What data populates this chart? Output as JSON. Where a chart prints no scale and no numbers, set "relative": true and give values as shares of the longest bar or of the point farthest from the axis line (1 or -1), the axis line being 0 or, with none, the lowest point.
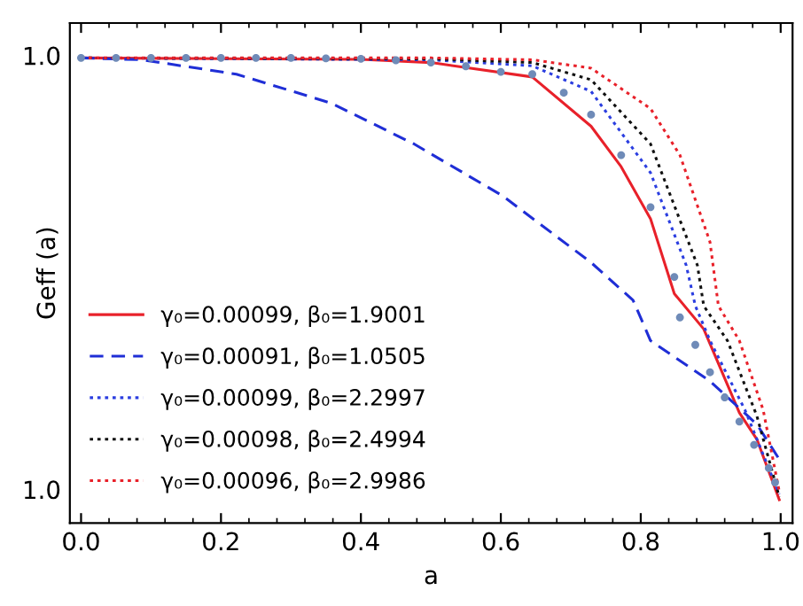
{
  "chart_data": {
    "type": "line",
    "relative": true,
    "xlabel": "a",
    "ylabel": "Geff (a)",
    "xlim": [
      -0.016,
      1.017
    ],
    "xticks": [
      {
        "value": 0,
        "label": "0.0"
      },
      {
        "value": 0.2,
        "label": "0.2"
      },
      {
        "value": 0.4,
        "label": "0.4"
      },
      {
        "value": 0.6,
        "label": "0.6"
      },
      {
        "value": 0.8,
        "label": "0.8"
      },
      {
        "value": 1.0,
        "label": "1.0"
      }
    ],
    "annotations": [
      "1.0",
      "1.0"
    ],
    "legend": "bottom left",
    "grid": false,
    "series": [
      {
        "name": "γ₀=0.00099, β₀=1.9001",
        "color": "#e8212a",
        "line_style": "solid",
        "marker": "none",
        "x": [
          0,
          0.4,
          0.5,
          0.645,
          0.729,
          0.772,
          0.814,
          0.848,
          0.89,
          0.941,
          0.966,
          0.998
        ],
        "values": [
          1.0,
          0.997,
          0.99,
          0.959,
          0.853,
          0.766,
          0.654,
          0.493,
          0.417,
          0.237,
          0.18,
          0.05
        ]
      },
      {
        "name": "γ₀=0.00091, β₀=1.0505",
        "color": "#1f2ed6",
        "line_style": "dashed",
        "marker": "none",
        "x": [
          0,
          0.087,
          0.222,
          0.357,
          0.476,
          0.603,
          0.729,
          0.789,
          0.814,
          0.899,
          0.966,
          0.998
        ],
        "values": [
          1.0,
          0.996,
          0.965,
          0.903,
          0.815,
          0.703,
          0.56,
          0.479,
          0.392,
          0.305,
          0.212,
          0.137
        ]
      },
      {
        "name": "γ₀=0.00099, β₀=2.2997",
        "color": "#2b3ee0",
        "line_style": "dotted",
        "marker": "none",
        "x": [
          0,
          0.5,
          0.645,
          0.729,
          0.814,
          0.865,
          0.878,
          0.899,
          0.949,
          0.998
        ],
        "values": [
          1.0,
          0.996,
          0.983,
          0.928,
          0.753,
          0.554,
          0.467,
          0.392,
          0.243,
          0.062
        ]
      },
      {
        "name": "γ₀=0.00098, β₀=2.4994",
        "color": "#111111",
        "line_style": "dotted",
        "marker": "none",
        "x": [
          0,
          0.5,
          0.645,
          0.729,
          0.814,
          0.881,
          0.89,
          0.924,
          0.966,
          0.998
        ],
        "values": [
          1.0,
          0.998,
          0.99,
          0.953,
          0.815,
          0.554,
          0.467,
          0.392,
          0.23,
          0.056
        ]
      },
      {
        "name": "γ₀=0.00096, β₀=2.9986",
        "color": "#e8212a",
        "line_style": "dotted",
        "marker": "none",
        "x": [
          0,
          0.5,
          0.645,
          0.729,
          0.814,
          0.856,
          0.899,
          0.911,
          0.941,
          0.975,
          0.998
        ],
        "values": [
          1.0,
          1.0,
          0.996,
          0.978,
          0.891,
          0.791,
          0.604,
          0.467,
          0.392,
          0.243,
          0.068
        ]
      },
      {
        "type": "scatter",
        "color": "#6f8bb8",
        "marker": "circle",
        "x": [
          0,
          0.05,
          0.1,
          0.15,
          0.2,
          0.25,
          0.3,
          0.35,
          0.4,
          0.45,
          0.5,
          0.55,
          0.6,
          0.645,
          0.69,
          0.729,
          0.772,
          0.814,
          0.848,
          0.856,
          0.878,
          0.899,
          0.92,
          0.941,
          0.962,
          0.983,
          0.992
        ],
        "values": [
          1.0,
          1.0,
          1.0,
          1.0,
          1.0,
          1.0,
          1.0,
          0.999,
          0.998,
          0.995,
          0.99,
          0.982,
          0.97,
          0.965,
          0.925,
          0.878,
          0.791,
          0.679,
          0.529,
          0.442,
          0.383,
          0.324,
          0.27,
          0.218,
          0.168,
          0.118,
          0.087
        ]
      }
    ]
  }
}
